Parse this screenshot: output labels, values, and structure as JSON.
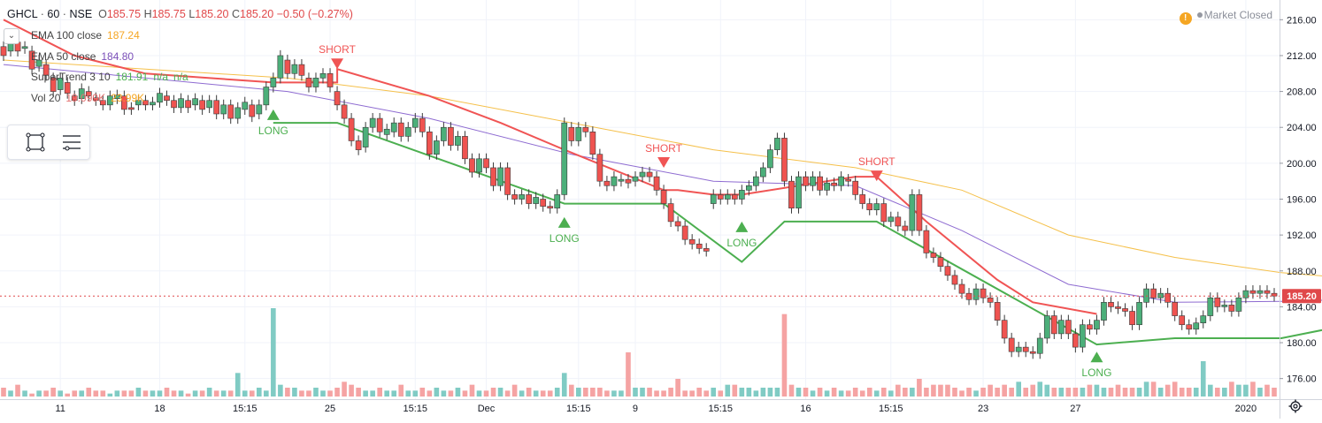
{
  "header": {
    "symbol": "GHCL",
    "interval": "60",
    "exchange": "NSE",
    "separator": "·",
    "ohlc": {
      "o_label": "O",
      "o": "185.75",
      "h_label": "H",
      "h": "185.75",
      "l_label": "L",
      "l": "185.20",
      "c_label": "C",
      "c": "185.20",
      "change": "−0.50 (−0.27%)"
    }
  },
  "status": {
    "warning_icon": "!",
    "text": "Market Closed"
  },
  "legend": [
    {
      "label": "EMA 100 close",
      "value": "187.24",
      "color": "#f5a623"
    },
    {
      "label": "EMA 50 close",
      "value": "184.80",
      "color": "#7b4fb8"
    },
    {
      "label": "SuperTrend 3 10",
      "value": "181.91",
      "value2": "n/a",
      "value3": "n/a",
      "color": "#4caf50"
    },
    {
      "label": "Vol 20",
      "value": "19.099K",
      "value2": "23.99K",
      "color": "#e57373"
    }
  ],
  "colors": {
    "up": "#26a69a",
    "up_body": "#4caf7a",
    "down": "#ef5350",
    "ema100": "#f5c04a",
    "ema50": "#8e6bd1",
    "st_up": "#4caf50",
    "st_down": "#f05454",
    "price_line": "#e0484a",
    "vol_up": "#80cbc4",
    "vol_down": "#f5a3a3"
  },
  "icons": {
    "collapse": "chevron-down-icon",
    "rect_tool": "rectangle-tool-icon",
    "list_tool": "object-tree-icon",
    "settings": "gear-icon"
  },
  "chart_data": {
    "type": "candlestick",
    "ylim": [
      174,
      218
    ],
    "y_ticks": [
      "216.00",
      "212.00",
      "208.00",
      "204.00",
      "200.00",
      "196.00",
      "192.00",
      "188.00",
      "184.00",
      "180.00",
      "176.00"
    ],
    "x_ticks": [
      "11",
      "18",
      "15:15",
      "25",
      "15:15",
      "Dec",
      "15:15",
      "9",
      "15:15",
      "16",
      "15:15",
      "23",
      "27",
      "2020"
    ],
    "last_price": "185.20",
    "candles": [
      {
        "o": 213.0,
        "c": 212.0
      },
      {
        "o": 212.5,
        "c": 213.8
      },
      {
        "o": 213.5,
        "c": 212.5
      },
      {
        "o": 212.8,
        "c": 213.0
      },
      {
        "o": 212.5,
        "c": 210.5
      },
      {
        "o": 210.8,
        "c": 211.5
      },
      {
        "o": 211.0,
        "c": 209.8
      },
      {
        "o": 209.5,
        "c": 208.0
      },
      {
        "o": 208.2,
        "c": 209.5
      },
      {
        "o": 209.0,
        "c": 207.8
      },
      {
        "o": 207.5,
        "c": 207.0
      },
      {
        "o": 207.2,
        "c": 208.3
      },
      {
        "o": 208.0,
        "c": 207.5
      },
      {
        "o": 207.3,
        "c": 207.0
      },
      {
        "o": 207.0,
        "c": 206.5
      },
      {
        "o": 206.5,
        "c": 207.5
      },
      {
        "o": 207.2,
        "c": 207.6
      },
      {
        "o": 207.5,
        "c": 206.0
      },
      {
        "o": 206.2,
        "c": 206.0
      },
      {
        "o": 206.5,
        "c": 207.0
      },
      {
        "o": 207.0,
        "c": 206.5
      },
      {
        "o": 206.5,
        "c": 206.8
      },
      {
        "o": 206.8,
        "c": 207.8
      },
      {
        "o": 207.5,
        "c": 207.0
      },
      {
        "o": 207.0,
        "c": 206.2
      },
      {
        "o": 206.2,
        "c": 207.2
      },
      {
        "o": 207.0,
        "c": 206.2
      },
      {
        "o": 206.5,
        "c": 207.2
      },
      {
        "o": 207.0,
        "c": 206.0
      },
      {
        "o": 206.2,
        "c": 207.0
      },
      {
        "o": 207.0,
        "c": 205.5
      },
      {
        "o": 205.5,
        "c": 206.5
      },
      {
        "o": 206.5,
        "c": 205.0
      },
      {
        "o": 205.0,
        "c": 206.2
      },
      {
        "o": 206.0,
        "c": 206.8
      },
      {
        "o": 206.5,
        "c": 205.2
      },
      {
        "o": 205.5,
        "c": 206.5
      },
      {
        "o": 206.5,
        "c": 208.5
      },
      {
        "o": 208.5,
        "c": 209.5
      },
      {
        "o": 209.5,
        "c": 212.0
      },
      {
        "o": 211.5,
        "c": 210.0
      },
      {
        "o": 210.0,
        "c": 211.0
      },
      {
        "o": 211.0,
        "c": 209.8
      },
      {
        "o": 209.5,
        "c": 208.5
      },
      {
        "o": 208.5,
        "c": 209.5
      },
      {
        "o": 209.5,
        "c": 210.0
      },
      {
        "o": 210.0,
        "c": 208.5
      },
      {
        "o": 208.0,
        "c": 206.5
      },
      {
        "o": 206.5,
        "c": 205.0
      },
      {
        "o": 205.0,
        "c": 202.5
      },
      {
        "o": 202.5,
        "c": 201.5
      },
      {
        "o": 201.8,
        "c": 204.0
      },
      {
        "o": 204.0,
        "c": 205.0
      },
      {
        "o": 205.0,
        "c": 203.5
      },
      {
        "o": 203.2,
        "c": 203.8
      },
      {
        "o": 203.5,
        "c": 204.5
      },
      {
        "o": 204.5,
        "c": 203.0
      },
      {
        "o": 203.0,
        "c": 204.0
      },
      {
        "o": 204.0,
        "c": 205.0
      },
      {
        "o": 205.0,
        "c": 203.5
      },
      {
        "o": 203.5,
        "c": 201.0
      },
      {
        "o": 201.0,
        "c": 202.5
      },
      {
        "o": 202.5,
        "c": 204.0
      },
      {
        "o": 204.0,
        "c": 202.0
      },
      {
        "o": 202.0,
        "c": 203.0
      },
      {
        "o": 203.0,
        "c": 200.5
      },
      {
        "o": 200.5,
        "c": 199.0
      },
      {
        "o": 199.0,
        "c": 200.5
      },
      {
        "o": 200.5,
        "c": 199.5
      },
      {
        "o": 199.5,
        "c": 197.5
      },
      {
        "o": 197.5,
        "c": 199.5
      },
      {
        "o": 199.5,
        "c": 196.5
      },
      {
        "o": 196.5,
        "c": 196.0
      },
      {
        "o": 196.0,
        "c": 196.5
      },
      {
        "o": 196.5,
        "c": 195.5
      },
      {
        "o": 195.5,
        "c": 196.2
      },
      {
        "o": 196.0,
        "c": 195.2
      },
      {
        "o": 195.2,
        "c": 195.0
      },
      {
        "o": 195.0,
        "c": 196.5
      },
      {
        "o": 196.5,
        "c": 204.5
      },
      {
        "o": 204.0,
        "c": 202.5
      },
      {
        "o": 202.5,
        "c": 204.0
      },
      {
        "o": 204.0,
        "c": 203.5
      },
      {
        "o": 203.5,
        "c": 201.0
      },
      {
        "o": 201.0,
        "c": 198.0
      },
      {
        "o": 198.0,
        "c": 197.5
      },
      {
        "o": 197.5,
        "c": 198.5
      },
      {
        "o": 198.0,
        "c": 198.2
      },
      {
        "o": 198.2,
        "c": 197.8
      },
      {
        "o": 198.0,
        "c": 198.5
      },
      {
        "o": 198.5,
        "c": 199.0
      },
      {
        "o": 199.0,
        "c": 198.5
      },
      {
        "o": 198.5,
        "c": 197.0
      },
      {
        "o": 197.0,
        "c": 195.5
      },
      {
        "o": 195.5,
        "c": 193.5
      },
      {
        "o": 193.5,
        "c": 193.0
      },
      {
        "o": 193.0,
        "c": 191.5
      },
      {
        "o": 191.5,
        "c": 191.0
      },
      {
        "o": 191.0,
        "c": 190.5
      },
      {
        "o": 190.5,
        "c": 190.2
      },
      {
        "o": 195.5,
        "c": 196.5
      },
      {
        "o": 196.5,
        "c": 196.0
      },
      {
        "o": 196.0,
        "c": 196.5
      },
      {
        "o": 196.5,
        "c": 196.0
      },
      {
        "o": 196.0,
        "c": 197.0
      },
      {
        "o": 197.0,
        "c": 197.5
      },
      {
        "o": 197.5,
        "c": 198.5
      },
      {
        "o": 198.5,
        "c": 199.5
      },
      {
        "o": 199.5,
        "c": 201.5
      },
      {
        "o": 201.5,
        "c": 202.8
      },
      {
        "o": 202.8,
        "c": 198.0
      },
      {
        "o": 198.0,
        "c": 195.0
      },
      {
        "o": 195.0,
        "c": 198.5
      },
      {
        "o": 198.5,
        "c": 197.5
      },
      {
        "o": 197.5,
        "c": 198.5
      },
      {
        "o": 198.5,
        "c": 197.0
      },
      {
        "o": 197.0,
        "c": 197.8
      },
      {
        "o": 197.8,
        "c": 197.5
      },
      {
        "o": 197.5,
        "c": 198.5
      },
      {
        "o": 198.2,
        "c": 198.0
      },
      {
        "o": 198.0,
        "c": 196.5
      },
      {
        "o": 196.5,
        "c": 195.5
      },
      {
        "o": 195.5,
        "c": 194.8
      },
      {
        "o": 194.8,
        "c": 195.5
      },
      {
        "o": 195.5,
        "c": 193.5
      },
      {
        "o": 193.5,
        "c": 194.0
      },
      {
        "o": 194.0,
        "c": 193.0
      },
      {
        "o": 193.0,
        "c": 192.5
      },
      {
        "o": 192.5,
        "c": 196.5
      },
      {
        "o": 196.5,
        "c": 192.5
      },
      {
        "o": 192.5,
        "c": 190.0
      },
      {
        "o": 190.0,
        "c": 189.5
      },
      {
        "o": 189.5,
        "c": 188.5
      },
      {
        "o": 188.5,
        "c": 187.5
      },
      {
        "o": 187.5,
        "c": 186.5
      },
      {
        "o": 186.5,
        "c": 185.5
      },
      {
        "o": 185.5,
        "c": 184.8
      },
      {
        "o": 184.8,
        "c": 186.0
      },
      {
        "o": 186.0,
        "c": 185.0
      },
      {
        "o": 185.0,
        "c": 184.5
      },
      {
        "o": 184.5,
        "c": 182.5
      },
      {
        "o": 182.5,
        "c": 180.5
      },
      {
        "o": 180.5,
        "c": 179.0
      },
      {
        "o": 179.0,
        "c": 179.5
      },
      {
        "o": 179.5,
        "c": 179.0
      },
      {
        "o": 179.0,
        "c": 178.8
      },
      {
        "o": 178.8,
        "c": 180.5
      },
      {
        "o": 180.5,
        "c": 183.0
      },
      {
        "o": 183.0,
        "c": 181.0
      },
      {
        "o": 181.0,
        "c": 182.5
      },
      {
        "o": 182.5,
        "c": 181.0
      },
      {
        "o": 181.0,
        "c": 179.5
      },
      {
        "o": 179.5,
        "c": 182.0
      },
      {
        "o": 182.0,
        "c": 181.5
      },
      {
        "o": 181.5,
        "c": 182.5
      },
      {
        "o": 182.5,
        "c": 184.5
      },
      {
        "o": 184.5,
        "c": 184.0
      },
      {
        "o": 184.0,
        "c": 183.8
      },
      {
        "o": 183.8,
        "c": 183.5
      },
      {
        "o": 183.5,
        "c": 182.0
      },
      {
        "o": 182.0,
        "c": 184.5
      },
      {
        "o": 184.5,
        "c": 186.0
      },
      {
        "o": 186.0,
        "c": 185.0
      },
      {
        "o": 185.0,
        "c": 185.5
      },
      {
        "o": 185.5,
        "c": 184.5
      },
      {
        "o": 184.5,
        "c": 183.0
      },
      {
        "o": 183.0,
        "c": 182.0
      },
      {
        "o": 182.0,
        "c": 181.5
      },
      {
        "o": 181.5,
        "c": 182.2
      },
      {
        "o": 182.2,
        "c": 183.0
      },
      {
        "o": 183.0,
        "c": 185.0
      },
      {
        "o": 185.0,
        "c": 184.0
      },
      {
        "o": 184.0,
        "c": 184.2
      },
      {
        "o": 184.2,
        "c": 183.5
      },
      {
        "o": 183.5,
        "c": 185.0
      },
      {
        "o": 185.0,
        "c": 185.8
      },
      {
        "o": 185.8,
        "c": 185.5
      },
      {
        "o": 185.5,
        "c": 185.8
      },
      {
        "o": 185.8,
        "c": 185.5
      },
      {
        "o": 185.5,
        "c": 185.2
      }
    ],
    "volumes": [
      3,
      2,
      4,
      2,
      1,
      2,
      2,
      3,
      2,
      1,
      2,
      2,
      3,
      2,
      2,
      1,
      2,
      2,
      2,
      3,
      2,
      2,
      2,
      3,
      2,
      2,
      1,
      2,
      2,
      3,
      2,
      2,
      2,
      8,
      2,
      2,
      3,
      2,
      30,
      4,
      3,
      3,
      2,
      2,
      3,
      2,
      2,
      3,
      5,
      4,
      3,
      2,
      2,
      3,
      2,
      2,
      4,
      2,
      2,
      3,
      2,
      3,
      2,
      2,
      3,
      2,
      4,
      2,
      2,
      3,
      3,
      2,
      4,
      2,
      3,
      2,
      2,
      2,
      3,
      8,
      4,
      3,
      3,
      3,
      3,
      2,
      2,
      2,
      15,
      3,
      3,
      3,
      2,
      2,
      3,
      6,
      2,
      2,
      3,
      2,
      3,
      2,
      4,
      4,
      3,
      3,
      2,
      3,
      3,
      3,
      28,
      4,
      3,
      3,
      2,
      3,
      2,
      3,
      2,
      2,
      3,
      2,
      3,
      2,
      3,
      2,
      4,
      3,
      3,
      6,
      3,
      4,
      4,
      4,
      3,
      2,
      3,
      2,
      3,
      4,
      3,
      4,
      3,
      5,
      3,
      4,
      5,
      4,
      3,
      3,
      3,
      3,
      3,
      4,
      4,
      3,
      3,
      4,
      3,
      3,
      3,
      5,
      5,
      3,
      4,
      5,
      3,
      3,
      3,
      12,
      4,
      3,
      3,
      5,
      4,
      4,
      5,
      3,
      4,
      3,
      4,
      4,
      3,
      5
    ],
    "signals": [
      {
        "type": "LONG",
        "index": 38
      },
      {
        "type": "SHORT",
        "index": 47
      },
      {
        "type": "LONG",
        "index": 79
      },
      {
        "type": "SHORT",
        "index": 93
      },
      {
        "type": "LONG",
        "index": 104
      },
      {
        "type": "SHORT",
        "index": 123
      },
      {
        "type": "LONG",
        "index": 154
      }
    ],
    "ema100": [
      [
        0,
        211.5
      ],
      [
        20,
        210.5
      ],
      [
        40,
        209.5
      ],
      [
        60,
        207.5
      ],
      [
        80,
        204.5
      ],
      [
        100,
        201.5
      ],
      [
        120,
        199.5
      ],
      [
        135,
        197
      ],
      [
        150,
        192
      ],
      [
        165,
        189.5
      ],
      [
        180,
        187.8
      ],
      [
        189,
        187.24
      ]
    ],
    "ema50": [
      [
        0,
        211
      ],
      [
        20,
        209.5
      ],
      [
        40,
        208
      ],
      [
        60,
        205
      ],
      [
        80,
        201
      ],
      [
        100,
        198
      ],
      [
        120,
        197.5
      ],
      [
        135,
        192.5
      ],
      [
        150,
        186.5
      ],
      [
        165,
        184.5
      ],
      [
        180,
        184.6
      ],
      [
        189,
        184.8
      ]
    ],
    "supertrend_down": [
      [
        0,
        216
      ],
      [
        10,
        212
      ],
      [
        20,
        210
      ],
      [
        38,
        209
      ],
      [
        47,
        209
      ],
      [
        47,
        210.5
      ],
      [
        60,
        207.5
      ],
      [
        70,
        204.5
      ],
      [
        79,
        201.5
      ],
      [
        93,
        197
      ],
      [
        95,
        197
      ],
      [
        100,
        196.5
      ],
      [
        104,
        196.5
      ],
      [
        120,
        198.5
      ],
      [
        123,
        198.5
      ],
      [
        130,
        193.5
      ],
      [
        140,
        187
      ],
      [
        145,
        184.5
      ],
      [
        154,
        183.2
      ]
    ],
    "supertrend_up": [
      [
        38,
        204.5
      ],
      [
        47,
        204.5
      ],
      [
        79,
        195.5
      ],
      [
        93,
        195.5
      ],
      [
        104,
        189
      ],
      [
        110,
        193.5
      ],
      [
        123,
        193.5
      ],
      [
        154,
        179.8
      ],
      [
        165,
        180.5
      ],
      [
        180,
        180.5
      ],
      [
        189,
        181.91
      ]
    ]
  }
}
